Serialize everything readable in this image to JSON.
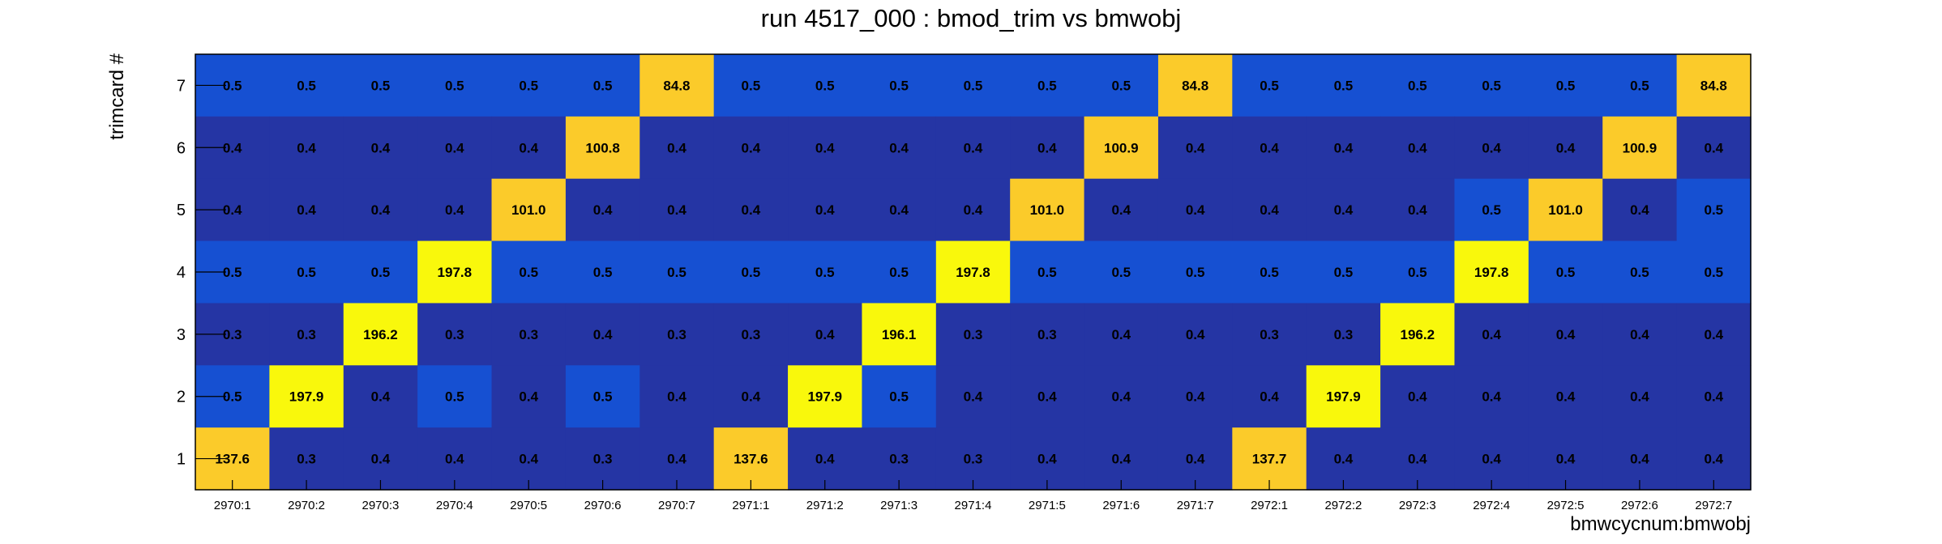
{
  "chart_data": {
    "type": "heatmap",
    "title": "run 4517_000 : bmod_trim vs bmwobj",
    "xlabel": "bmwcycnum:bmwobj",
    "ylabel": "trimcard #",
    "x_categories": [
      "2970:1",
      "2970:2",
      "2970:3",
      "2970:4",
      "2970:5",
      "2970:6",
      "2970:7",
      "2971:1",
      "2971:2",
      "2971:3",
      "2971:4",
      "2971:5",
      "2971:6",
      "2971:7",
      "2972:1",
      "2972:2",
      "2972:3",
      "2972:4",
      "2972:5",
      "2972:6",
      "2972:7"
    ],
    "y_categories": [
      "1",
      "2",
      "3",
      "4",
      "5",
      "6",
      "7"
    ],
    "rows": [
      {
        "y": "7",
        "values": [
          0.5,
          0.5,
          0.5,
          0.5,
          0.5,
          0.5,
          84.8,
          0.5,
          0.5,
          0.5,
          0.5,
          0.5,
          0.5,
          84.8,
          0.5,
          0.5,
          0.5,
          0.5,
          0.5,
          0.5,
          84.8
        ],
        "labels": [
          "0.5",
          "0.5",
          "0.5",
          "0.5",
          "0.5",
          "0.5",
          "84.8",
          "0.5",
          "0.5",
          "0.5",
          "0.5",
          "0.5",
          "0.5",
          "84.8",
          "0.5",
          "0.5",
          "0.5",
          "0.5",
          "0.5",
          "0.5",
          "84.8"
        ]
      },
      {
        "y": "6",
        "values": [
          0.4,
          0.4,
          0.4,
          0.4,
          0.4,
          100.8,
          0.4,
          0.4,
          0.4,
          0.4,
          0.4,
          0.4,
          100.9,
          0.4,
          0.4,
          0.4,
          0.4,
          0.4,
          0.4,
          100.9,
          0.4
        ],
        "labels": [
          "0.4",
          "0.4",
          "0.4",
          "0.4",
          "0.4",
          "100.8",
          "0.4",
          "0.4",
          "0.4",
          "0.4",
          "0.4",
          "0.4",
          "100.9",
          "0.4",
          "0.4",
          "0.4",
          "0.4",
          "0.4",
          "0.4",
          "100.9",
          "0.4"
        ]
      },
      {
        "y": "5",
        "values": [
          0.4,
          0.4,
          0.4,
          0.4,
          101.0,
          0.4,
          0.4,
          0.4,
          0.4,
          0.4,
          0.4,
          101.0,
          0.4,
          0.4,
          0.4,
          0.4,
          0.4,
          0.5,
          101.0,
          0.4,
          0.5
        ],
        "labels": [
          "0.4",
          "0.4",
          "0.4",
          "0.4",
          "101.0",
          "0.4",
          "0.4",
          "0.4",
          "0.4",
          "0.4",
          "0.4",
          "101.0",
          "0.4",
          "0.4",
          "0.4",
          "0.4",
          "0.4",
          "0.5",
          "101.0",
          "0.4",
          "0.5"
        ]
      },
      {
        "y": "4",
        "values": [
          0.5,
          0.5,
          0.5,
          197.8,
          0.5,
          0.5,
          0.5,
          0.5,
          0.5,
          0.5,
          197.8,
          0.5,
          0.5,
          0.5,
          0.5,
          0.5,
          0.5,
          197.8,
          0.5,
          0.5,
          0.5
        ],
        "labels": [
          "0.5",
          "0.5",
          "0.5",
          "197.8",
          "0.5",
          "0.5",
          "0.5",
          "0.5",
          "0.5",
          "0.5",
          "197.8",
          "0.5",
          "0.5",
          "0.5",
          "0.5",
          "0.5",
          "0.5",
          "197.8",
          "0.5",
          "0.5",
          "0.5"
        ]
      },
      {
        "y": "3",
        "values": [
          0.3,
          0.3,
          196.2,
          0.3,
          0.3,
          0.4,
          0.3,
          0.3,
          0.4,
          196.1,
          0.3,
          0.3,
          0.4,
          0.4,
          0.3,
          0.3,
          196.2,
          0.4,
          0.4,
          0.4,
          0.4
        ],
        "labels": [
          "0.3",
          "0.3",
          "196.2",
          "0.3",
          "0.3",
          "0.4",
          "0.3",
          "0.3",
          "0.4",
          "196.1",
          "0.3",
          "0.3",
          "0.4",
          "0.4",
          "0.3",
          "0.3",
          "196.2",
          "0.4",
          "0.4",
          "0.4",
          "0.4"
        ]
      },
      {
        "y": "2",
        "values": [
          0.5,
          197.9,
          0.4,
          0.5,
          0.4,
          0.5,
          0.4,
          0.4,
          197.9,
          0.5,
          0.4,
          0.4,
          0.4,
          0.4,
          0.4,
          197.9,
          0.4,
          0.4,
          0.4,
          0.4,
          0.4
        ],
        "labels": [
          "0.5",
          "197.9",
          "0.4",
          "0.5",
          "0.4",
          "0.5",
          "0.4",
          "0.4",
          "197.9",
          "0.5",
          "0.4",
          "0.4",
          "0.4",
          "0.4",
          "0.4",
          "197.9",
          "0.4",
          "0.4",
          "0.4",
          "0.4",
          "0.4"
        ]
      },
      {
        "y": "1",
        "values": [
          137.6,
          0.3,
          0.4,
          0.4,
          0.4,
          0.3,
          0.4,
          137.6,
          0.4,
          0.3,
          0.3,
          0.4,
          0.4,
          0.4,
          137.7,
          0.4,
          0.4,
          0.4,
          0.4,
          0.4,
          0.4
        ],
        "labels": [
          "137.6",
          "0.3",
          "0.4",
          "0.4",
          "0.4",
          "0.3",
          "0.4",
          "137.6",
          "0.4",
          "0.3",
          "0.3",
          "0.4",
          "0.4",
          "0.4",
          "137.7",
          "0.4",
          "0.4",
          "0.4",
          "0.4",
          "0.4",
          "0.4"
        ]
      }
    ],
    "colors": {
      "dark_blue": "#2535a4",
      "mid_blue": "#1650d2",
      "gold": "#fbcb2a",
      "yellow": "#f9f80c",
      "frame": "#000000"
    }
  }
}
